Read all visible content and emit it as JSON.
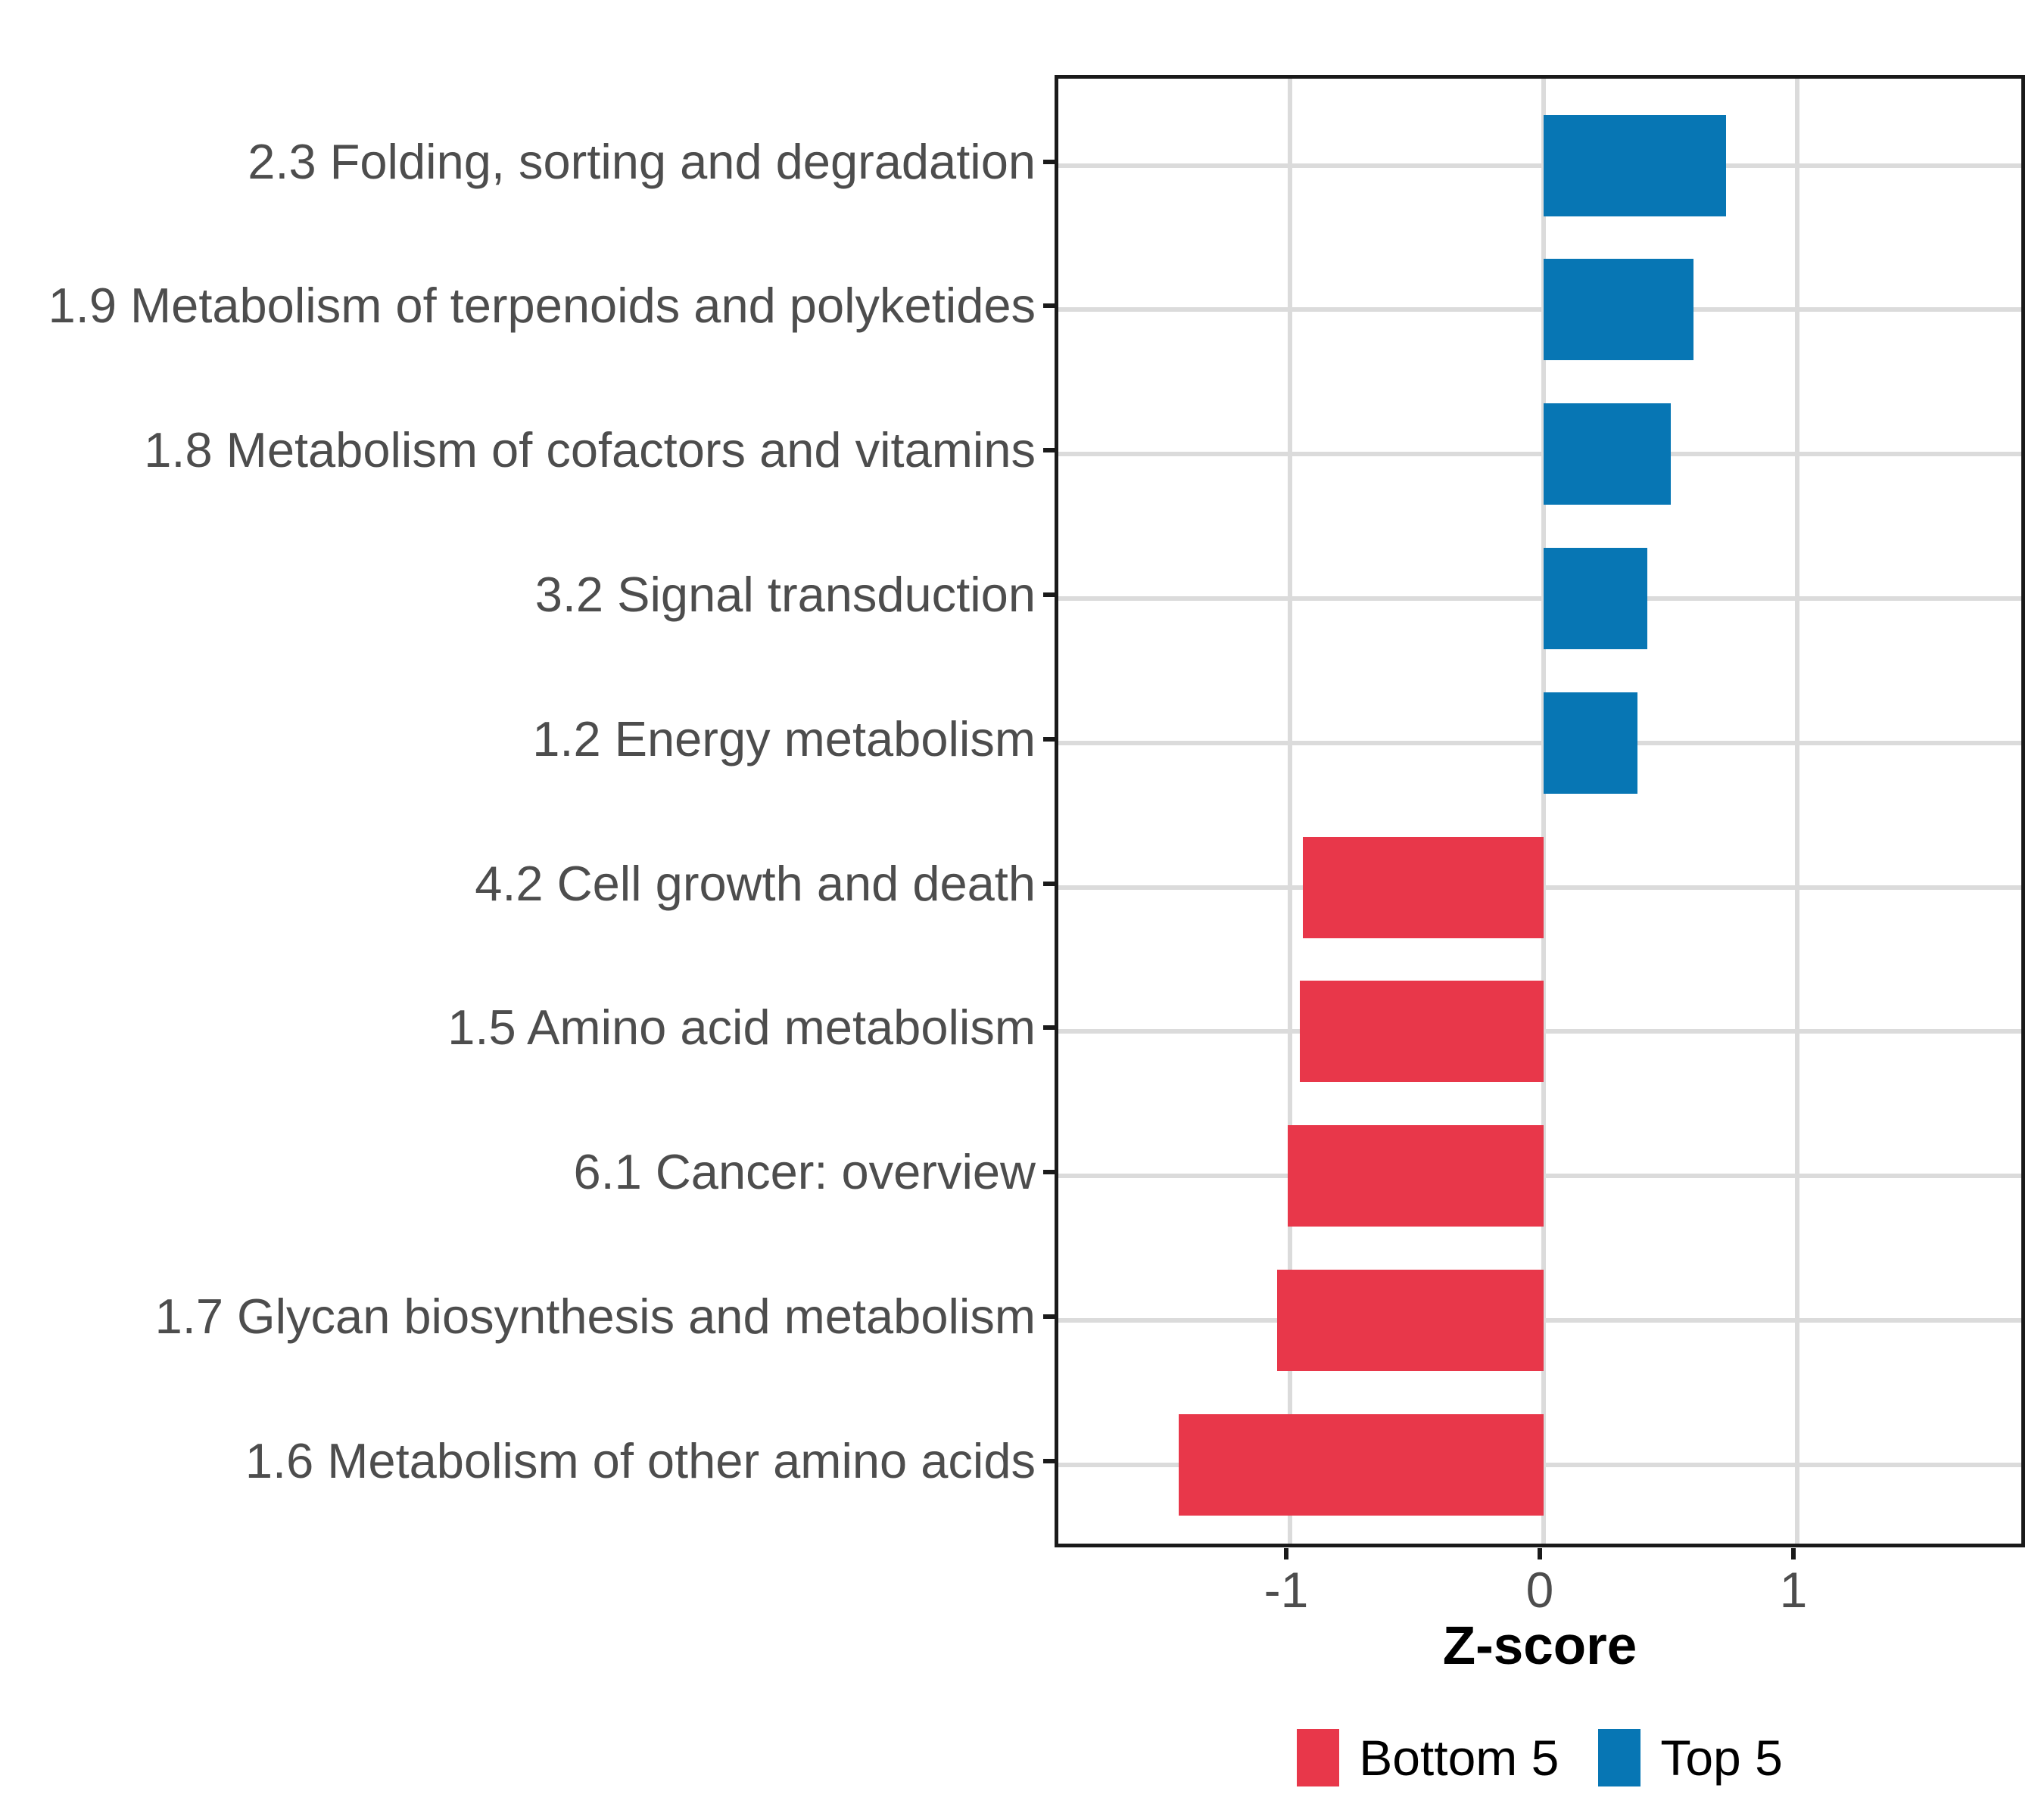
{
  "chart_data": {
    "type": "bar",
    "orientation": "horizontal",
    "title": "",
    "xlabel": "Z-score",
    "ylabel": "",
    "categories": [
      "2.3 Folding, sorting and degradation",
      "1.9 Metabolism of terpenoids and polyketides",
      "1.8 Metabolism of cofactors and vitamins",
      "3.2 Signal transduction",
      "1.2 Energy metabolism",
      "4.2 Cell growth and death",
      "1.5 Amino acid metabolism",
      "6.1 Cancer: overview",
      "1.7 Glycan biosynthesis and metabolism",
      "1.6 Metabolism of other amino acids"
    ],
    "values": [
      0.72,
      0.59,
      0.5,
      0.41,
      0.37,
      -0.95,
      -0.96,
      -1.01,
      -1.05,
      -1.44
    ],
    "groups": [
      "Top 5",
      "Top 5",
      "Top 5",
      "Top 5",
      "Top 5",
      "Bottom 5",
      "Bottom 5",
      "Bottom 5",
      "Bottom 5",
      "Bottom 5"
    ],
    "colors": {
      "Bottom 5": "#E8374A",
      "Top 5": "#0776B4"
    },
    "x_ticks": [
      {
        "value": -1,
        "label": "-1"
      },
      {
        "value": 0,
        "label": "0"
      },
      {
        "value": 1,
        "label": "1"
      }
    ],
    "xlim": [
      -1.91,
      1.91
    ],
    "grid": true,
    "grid_color": "#DBDBDB",
    "axis_color": "#1A1A1A",
    "text_color": "#4D4D4D",
    "legend_position": "bottom",
    "legend": [
      {
        "label": "Bottom 5",
        "color": "#E8374A"
      },
      {
        "label": "Top 5",
        "color": "#0776B4"
      }
    ]
  }
}
